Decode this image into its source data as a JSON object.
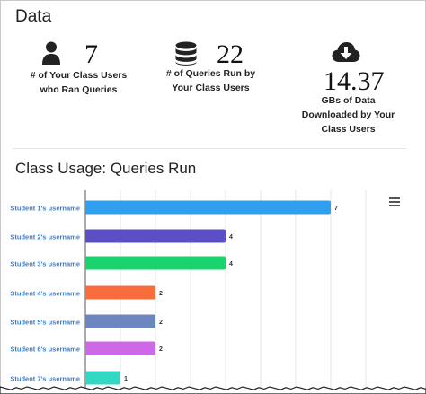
{
  "data_section": {
    "title": "Data",
    "stats": [
      {
        "icon": "user-icon",
        "value": "7",
        "label_line1": "# of Your Class Users",
        "label_line2": "who Ran Queries"
      },
      {
        "icon": "database-icon",
        "value": "22",
        "label_line1": "# of Queries Run by",
        "label_line2": "Your Class Users"
      },
      {
        "icon": "cloud-download-icon",
        "value": "14.37",
        "label_line1": "GBs of Data",
        "label_line2": "Downloaded by Your",
        "label_line3": "Class Users"
      }
    ]
  },
  "chart_data": {
    "type": "bar",
    "orientation": "horizontal",
    "title": "Class Usage: Queries Run",
    "categories": [
      "Student 1's username",
      "Student 2's username",
      "Student 3's username",
      "Student 4's username",
      "Student 5's username",
      "Student 6's username",
      "Student 7's username"
    ],
    "values": [
      7,
      4,
      4,
      2,
      2,
      2,
      1
    ],
    "colors": [
      "#2f9ff0",
      "#5a4fc4",
      "#19d36c",
      "#f96d3c",
      "#6e86bf",
      "#cf68e8",
      "#34d7c3"
    ],
    "xlim": [
      0,
      8
    ],
    "grid": true,
    "data_labels": true
  }
}
